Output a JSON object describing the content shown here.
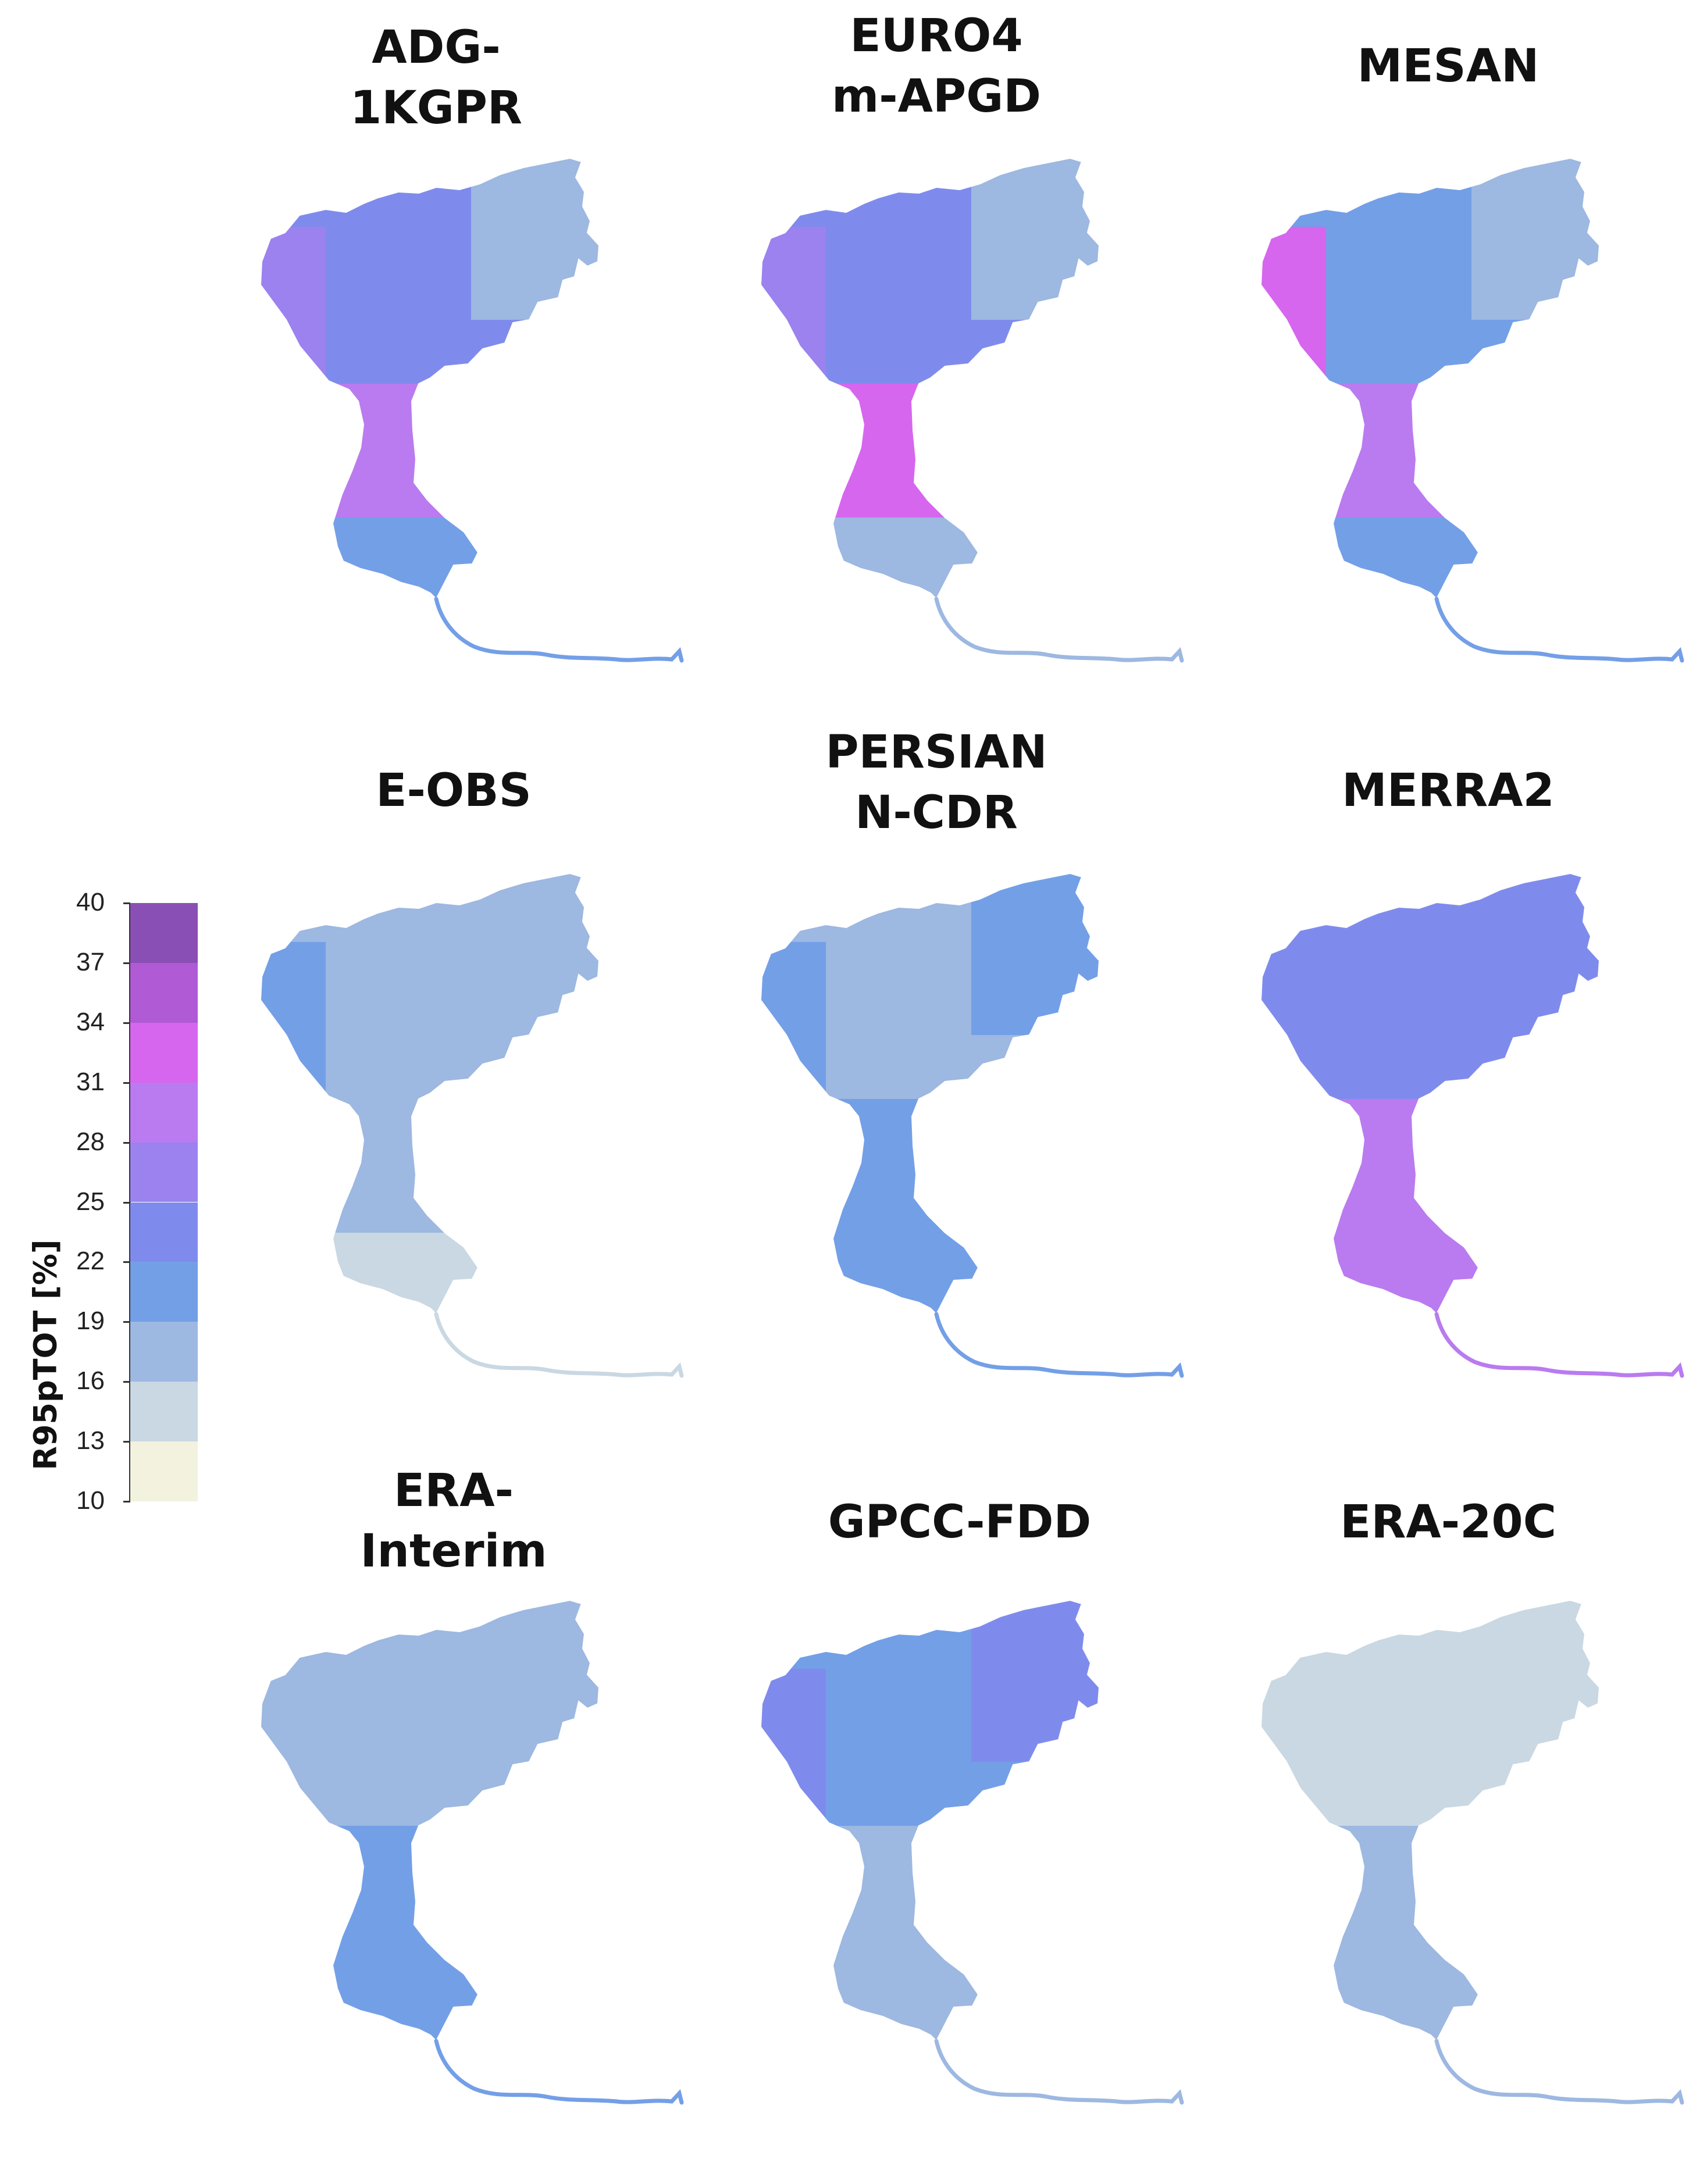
{
  "colorbar": {
    "title": "R95pTOT [%]",
    "ticks": [
      "40",
      "37",
      "34",
      "31",
      "28",
      "25",
      "22",
      "19",
      "16",
      "13",
      "10"
    ],
    "bands": [
      {
        "from": 37,
        "to": 40,
        "color": "#8a4fb4"
      },
      {
        "from": 34,
        "to": 37,
        "color": "#b05ad6"
      },
      {
        "from": 31,
        "to": 34,
        "color": "#d666ee"
      },
      {
        "from": 28,
        "to": 31,
        "color": "#b97bef"
      },
      {
        "from": 25,
        "to": 28,
        "color": "#9b82ee"
      },
      {
        "from": 22,
        "to": 25,
        "color": "#7f8bec"
      },
      {
        "from": 19,
        "to": 22,
        "color": "#739fe7"
      },
      {
        "from": 16,
        "to": 19,
        "color": "#9db8e1"
      },
      {
        "from": 13,
        "to": 16,
        "color": "#c9d8e2"
      },
      {
        "from": 10,
        "to": 13,
        "color": "#f3f2df"
      }
    ]
  },
  "panels": [
    {
      "title": "ADG-\n1KGPR",
      "north": "#7f8bec",
      "northeast": "#9db8e1",
      "west": "#9b82ee",
      "south": "#b97bef",
      "delta": "#739fe7"
    },
    {
      "title": "EURO4\nm-APGD",
      "north": "#7f8bec",
      "northeast": "#9db8e1",
      "west": "#9b82ee",
      "south": "#d666ee",
      "delta": "#9db8e1"
    },
    {
      "title": "MESAN",
      "north": "#739fe7",
      "northeast": "#9db8e1",
      "west": "#d666ee",
      "south": "#b97bef",
      "delta": "#739fe7"
    },
    {
      "title": "E-OBS",
      "north": "#9db8e1",
      "northeast": "#9db8e1",
      "west": "#739fe7",
      "south": "#9db8e1",
      "delta": "#c9d8e2"
    },
    {
      "title": "PERSIAN\nN-CDR",
      "north": "#9db8e1",
      "northeast": "#739fe7",
      "west": "#739fe7",
      "south": "#739fe7",
      "delta": "#739fe7"
    },
    {
      "title": "MERRA2",
      "north": "#7f8bec",
      "northeast": "#7f8bec",
      "west": "#7f8bec",
      "south": "#b97bef",
      "delta": "#b97bef"
    },
    {
      "title": "ERA-\nInterim",
      "north": "#9db8e1",
      "northeast": "#9db8e1",
      "west": "#9db8e1",
      "south": "#739fe7",
      "delta": "#739fe7"
    },
    {
      "title": "GPCC-FDD",
      "north": "#739fe7",
      "northeast": "#7f8bec",
      "west": "#7f8bec",
      "south": "#9db8e1",
      "delta": "#9db8e1"
    },
    {
      "title": "ERA-20C",
      "north": "#c9d8e2",
      "northeast": "#c9d8e2",
      "west": "#c9d8e2",
      "south": "#9db8e1",
      "delta": "#9db8e1"
    }
  ]
}
